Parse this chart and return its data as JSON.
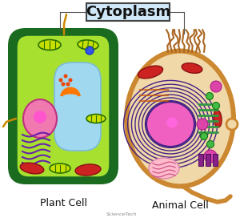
{
  "title": "Cytoplasm",
  "title_box_color": "#d0e8f8",
  "title_border_color": "#444444",
  "title_fontsize": 13,
  "bg_color": "#ffffff",
  "plant_cell_label": "Plant Cell",
  "animal_cell_label": "Animal Cell",
  "label_fontsize": 9,
  "plant_cell": {
    "outer_color": "#1a6b20",
    "inner_color": "#a8e030",
    "vacuole_color": "#a0d8ef",
    "nucleus_color": "#f07ab0",
    "nucleus_border": "#c03080",
    "mitochondria_color": "#cc2222",
    "er_color": "#6622aa",
    "golgi_color": "#ff7700",
    "chloroplast_fill": "#c8e000",
    "chloroplast_border": "#2a7000"
  },
  "animal_cell": {
    "outer_color": "#cc8830",
    "inner_color": "#f0d8a8",
    "nucleus_color": "#f060c0",
    "nucleus_border": "#8855cc",
    "er_spiral_color": "#442288",
    "mitochondria_color": "#cc2222",
    "golgi_color": "#33aa44",
    "lysosome_color": "#cc44aa",
    "centriole_color": "#882288"
  },
  "connector_color": "#555555",
  "watermark": "ScienceTech"
}
